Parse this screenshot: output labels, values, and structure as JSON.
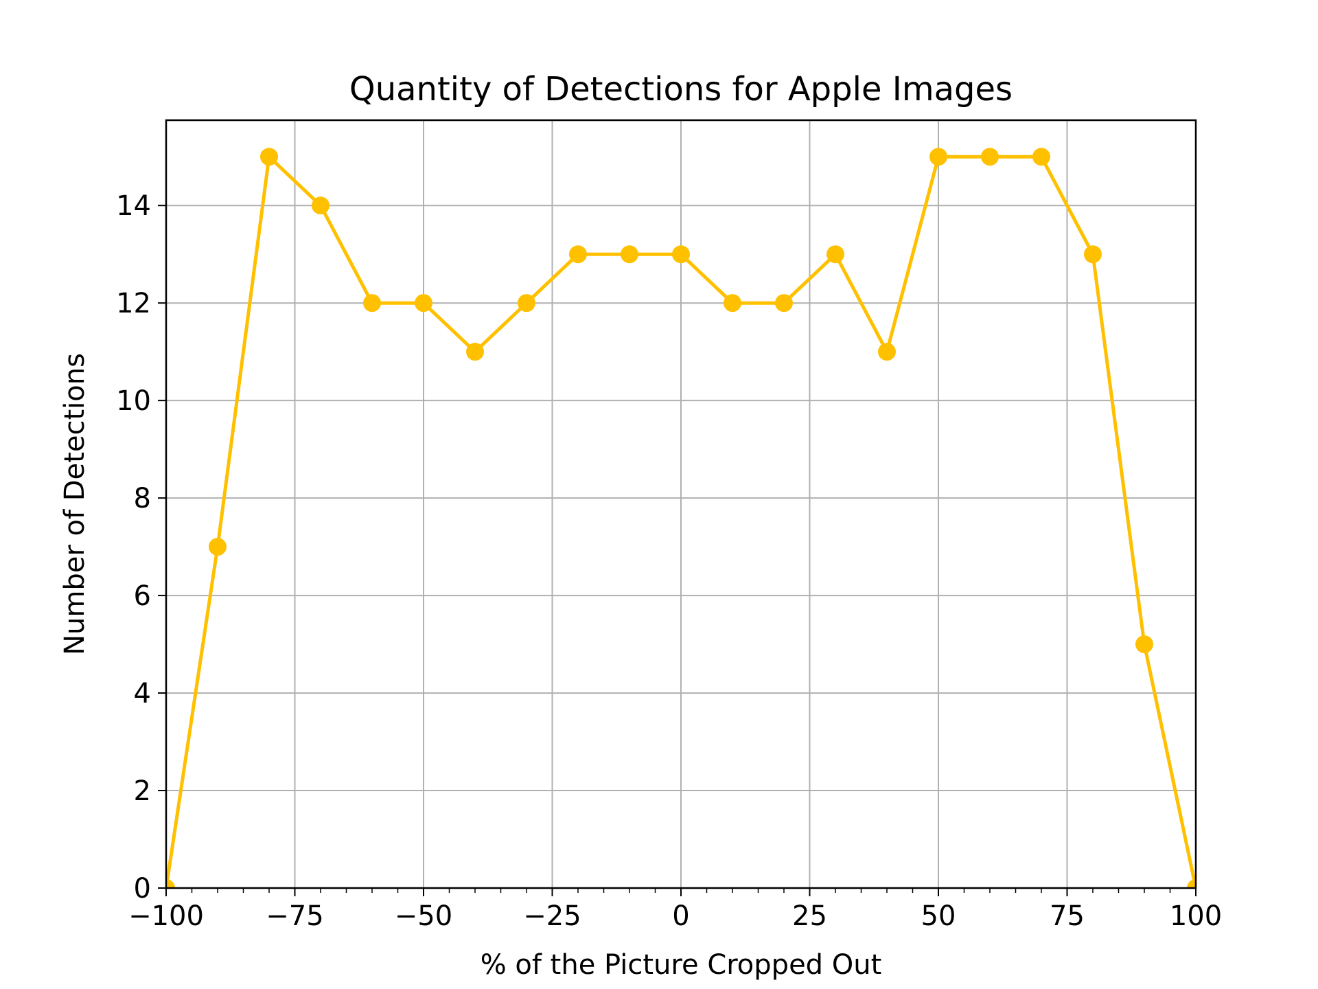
{
  "chart_data": {
    "type": "line",
    "title": "Quantity of Detections for Apple Images",
    "xlabel": "% of the Picture Cropped Out",
    "ylabel": "Number of Detections",
    "xlim": [
      -100,
      100
    ],
    "ylim": [
      0,
      15.75
    ],
    "x_ticks": [
      -100,
      -75,
      -50,
      -25,
      0,
      25,
      50,
      75,
      100
    ],
    "x_tick_labels": [
      "−100",
      "−75",
      "−50",
      "−25",
      "0",
      "25",
      "50",
      "75",
      "100"
    ],
    "y_ticks": [
      0,
      2,
      4,
      6,
      8,
      10,
      12,
      14
    ],
    "y_tick_labels": [
      "0",
      "2",
      "4",
      "6",
      "8",
      "10",
      "12",
      "14"
    ],
    "grid": true,
    "series": [
      {
        "color": "#FFC000",
        "marker": "circle",
        "x": [
          -100,
          -90,
          -80,
          -70,
          -60,
          -50,
          -40,
          -30,
          -20,
          -10,
          0,
          10,
          20,
          30,
          40,
          50,
          60,
          70,
          80,
          90,
          100
        ],
        "y": [
          0,
          7,
          15,
          14,
          12,
          12,
          11,
          12,
          13,
          13,
          13,
          12,
          12,
          13,
          11,
          15,
          15,
          15,
          13,
          5,
          0
        ]
      }
    ]
  }
}
